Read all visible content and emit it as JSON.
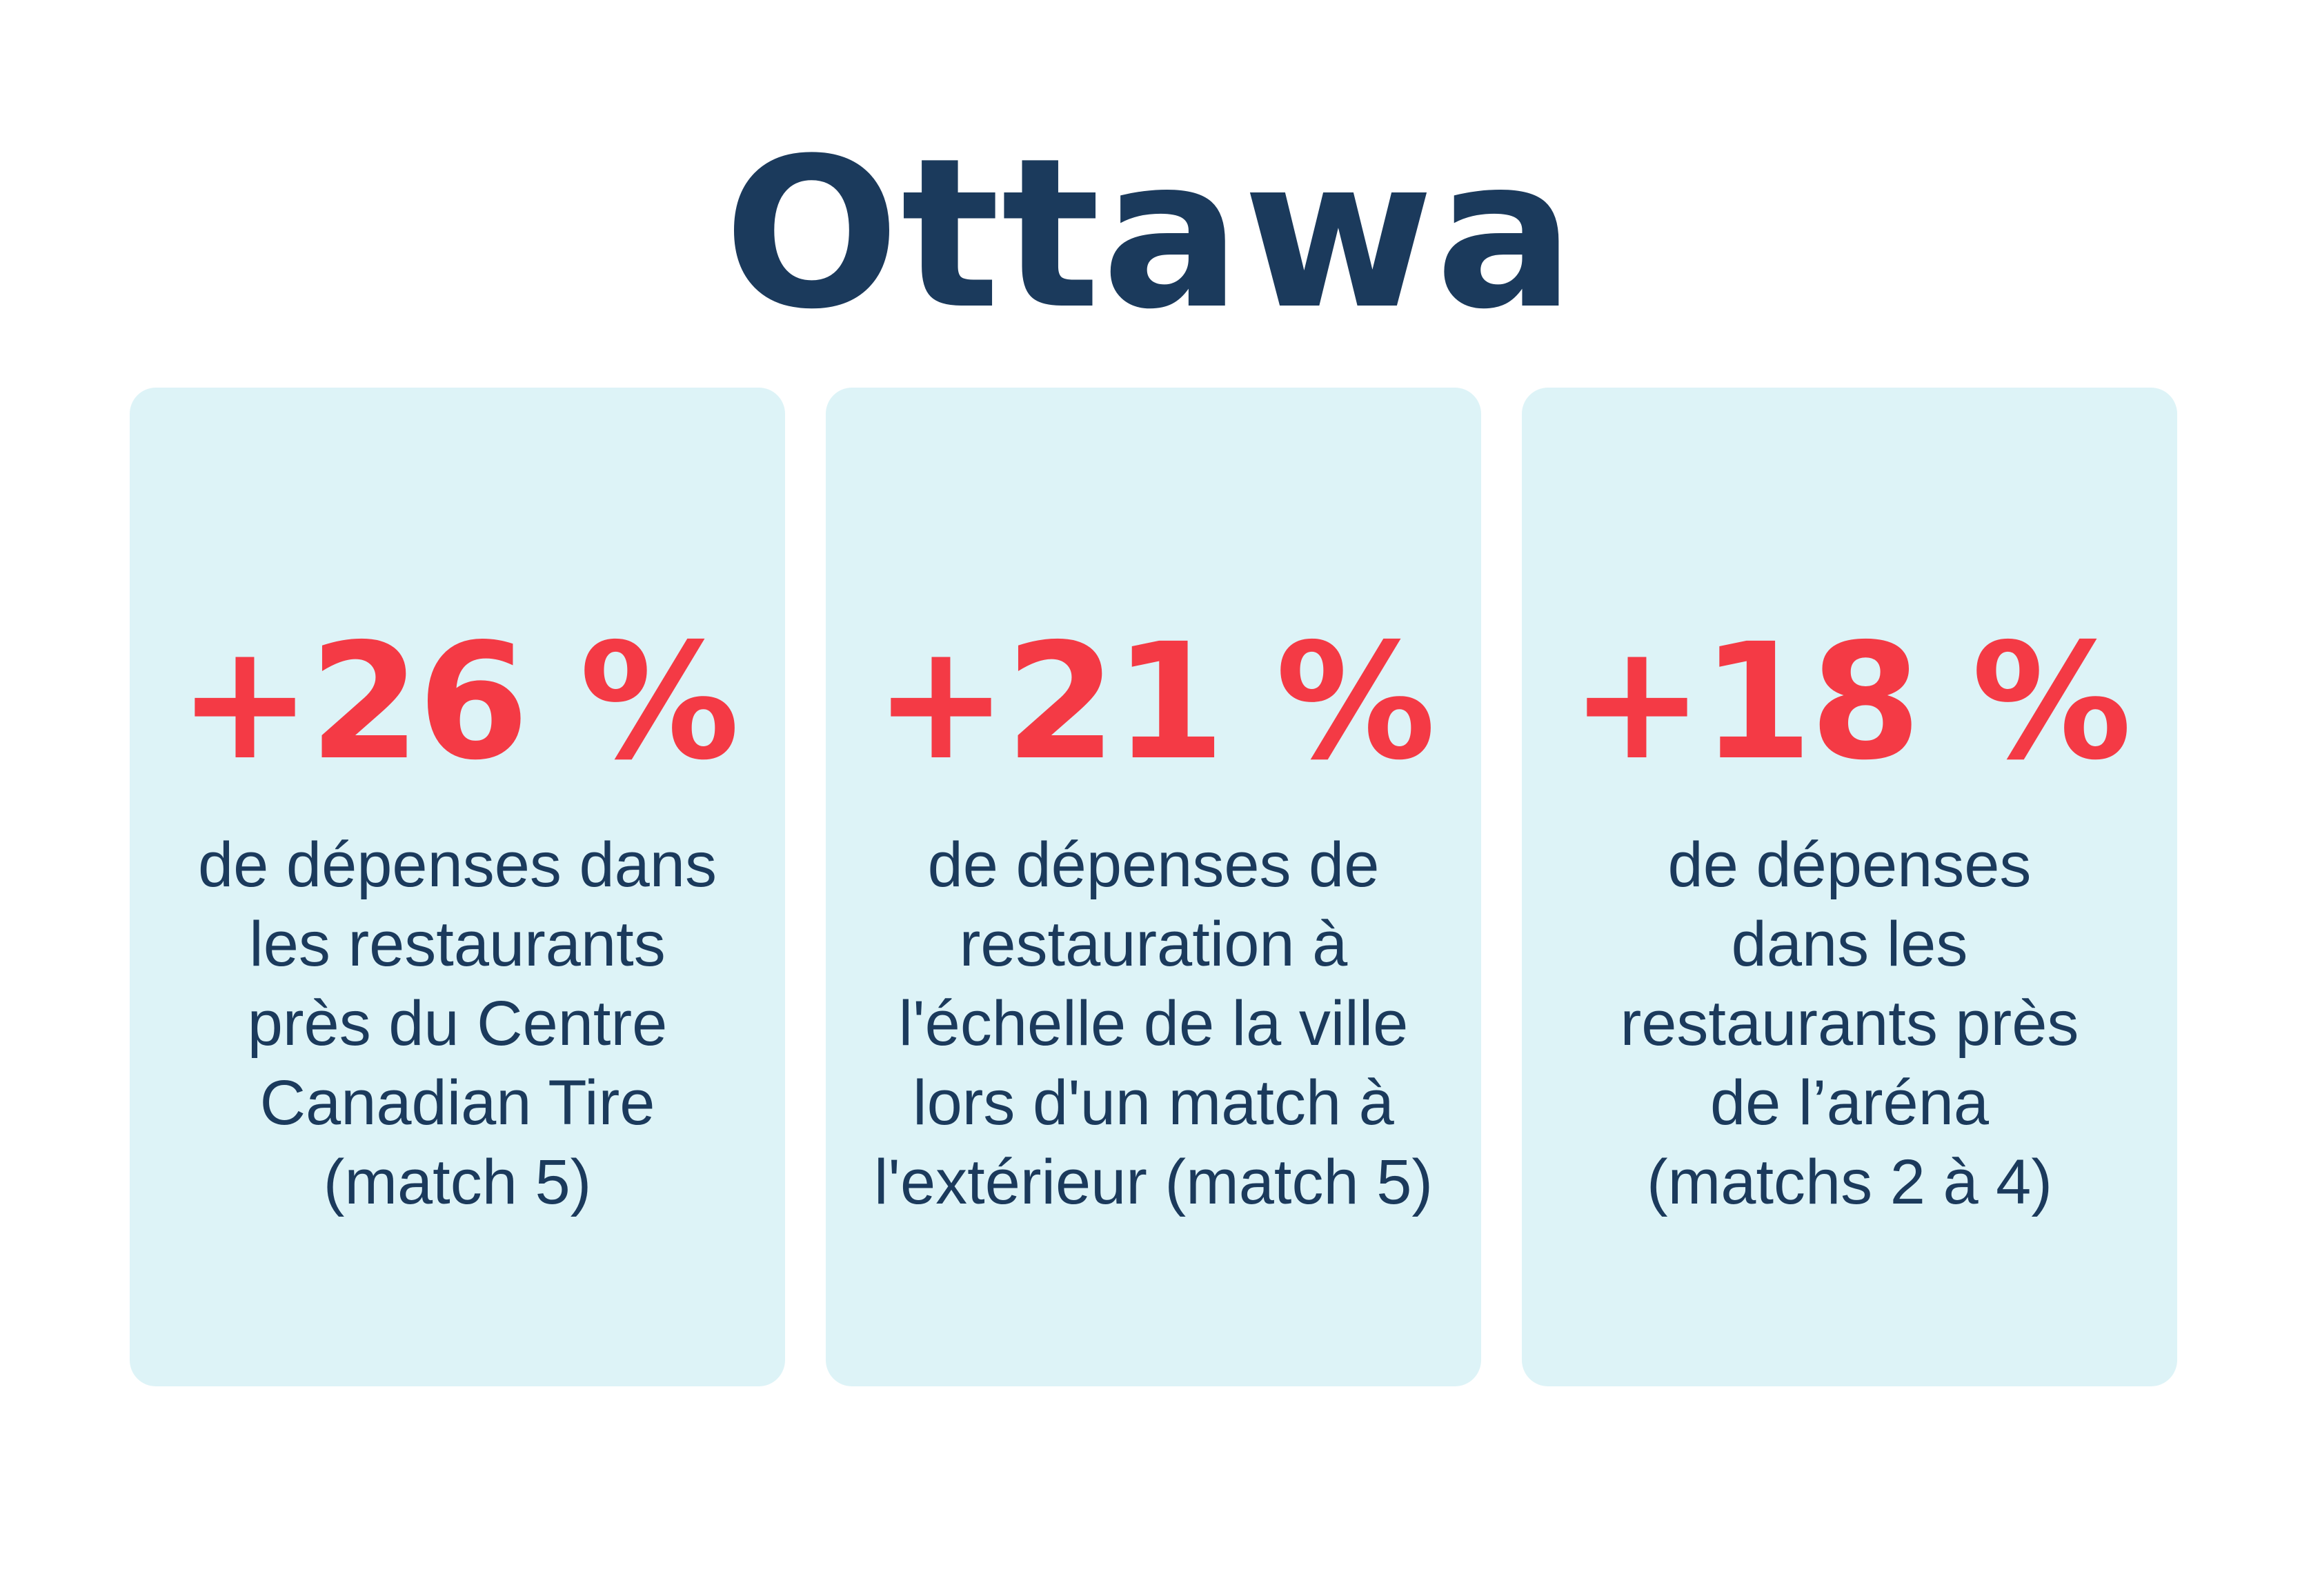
{
  "title": "Ottawa",
  "cards": [
    {
      "stat": "+26 %",
      "lines": [
        "de dépenses dans",
        "les restaurants",
        "près du Centre",
        "Canadian Tire",
        "(match 5)"
      ]
    },
    {
      "stat": "+21 %",
      "lines": [
        "de dépenses de",
        "restauration à",
        "l'échelle de la ville",
        "lors d'un match à",
        "l'extérieur (match 5)"
      ]
    },
    {
      "stat": "+18 %",
      "lines": [
        "de dépenses",
        "dans les",
        "restaurants près",
        "de l’aréna",
        "(matchs 2 à 4)"
      ]
    }
  ],
  "colors": {
    "title": "#1b3a5c",
    "stat": "#f43a45",
    "card_background": "#ddf3f7",
    "text": "#1b3a5c"
  }
}
